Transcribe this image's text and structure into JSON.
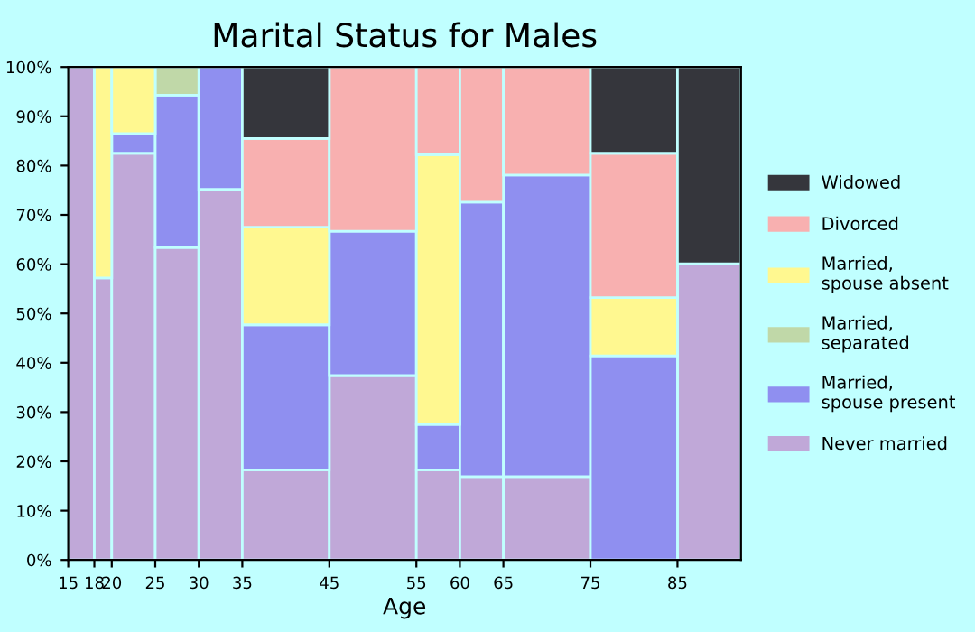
{
  "chart_data": {
    "type": "bar",
    "title": "Marital Status for Males",
    "xlabel": "Age",
    "stacked": true,
    "x": [
      16.5,
      19,
      22.5,
      27.5,
      32.5,
      40,
      50,
      57.5,
      62.5,
      70,
      80,
      88.65
    ],
    "xlim": [
      15,
      92.3
    ],
    "xticks": [
      15,
      18,
      20,
      25,
      30,
      35,
      45,
      55,
      60,
      65,
      75,
      85
    ],
    "ylim": [
      0,
      100
    ],
    "yticks": [
      {
        "value": 0,
        "label": "0%"
      },
      {
        "value": 10,
        "label": "10%"
      },
      {
        "value": 20,
        "label": "20%"
      },
      {
        "value": 30,
        "label": "30%"
      },
      {
        "value": 40,
        "label": "40%"
      },
      {
        "value": 50,
        "label": "50%"
      },
      {
        "value": 60,
        "label": "60%"
      },
      {
        "value": 70,
        "label": "70%"
      },
      {
        "value": 80,
        "label": "80%"
      },
      {
        "value": 90,
        "label": "90%"
      },
      {
        "value": 100,
        "label": "100%"
      }
    ],
    "grid": false,
    "legend": "right",
    "series": [
      {
        "name": "Never married",
        "color": "#c0a8d8",
        "values": [
          100,
          57.2,
          82.5,
          63.4,
          75.2,
          18.3,
          37.4,
          18.3,
          16.9,
          16.9,
          0,
          60.1
        ]
      },
      {
        "name": "Married,\nspouse present",
        "color": "#8f8ff0",
        "values": [
          0,
          0,
          4,
          30.9,
          24.8,
          29.4,
          29.3,
          9.2,
          55.7,
          61.2,
          41.4,
          0
        ]
      },
      {
        "name": "Married,\nseparated",
        "color": "#c0d8a8",
        "values": [
          0,
          0,
          0,
          5.7,
          0,
          0,
          0,
          0,
          0,
          0,
          0,
          0
        ]
      },
      {
        "name": "Married,\nspouse absent",
        "color": "#fff890",
        "values": [
          0,
          42.8,
          13.5,
          0,
          0,
          19.8,
          0,
          54.7,
          0,
          0,
          11.8,
          0
        ]
      },
      {
        "name": "Divorced",
        "color": "#f8b0b0",
        "values": [
          0,
          0,
          0,
          0,
          0,
          18,
          33.3,
          17.8,
          27.4,
          21.9,
          29.3,
          0
        ]
      },
      {
        "name": "Widowed",
        "color": "#35363c",
        "values": [
          0,
          0,
          0,
          0,
          0,
          14.5,
          0,
          0,
          0,
          0,
          17.5,
          39.9
        ]
      }
    ]
  }
}
